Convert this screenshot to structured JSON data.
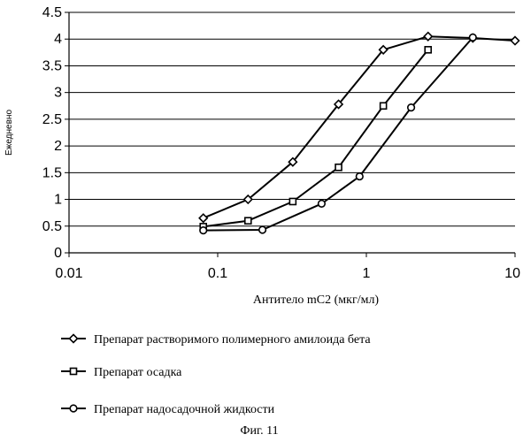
{
  "chart_data": {
    "type": "line",
    "x_scale": "log",
    "xlabel": "Антитело mC2 (мкг/мл)",
    "ylabel": "Ежедневно",
    "xlim": [
      0.01,
      10
    ],
    "ylim": [
      0,
      4.5
    ],
    "x_ticks": [
      0.01,
      0.1,
      1,
      10
    ],
    "x_tick_labels": [
      "0.01",
      "0.1",
      "1",
      "10"
    ],
    "y_ticks": [
      0,
      0.5,
      1,
      1.5,
      2,
      2.5,
      3,
      3.5,
      4,
      4.5
    ],
    "y_tick_labels": [
      "0",
      "0.5",
      "1",
      "1.5",
      "2",
      "2.5",
      "3",
      "3.5",
      "4",
      "4.5"
    ],
    "grid": "horizontal",
    "legend_position": "bottom",
    "series": [
      {
        "name": "Препарат растворимого полимерного амилоида бета",
        "marker": "diamond",
        "x": [
          0.08,
          0.16,
          0.32,
          0.65,
          1.3,
          2.6,
          5.2,
          10
        ],
        "y": [
          0.65,
          1.0,
          1.7,
          2.78,
          3.8,
          4.05,
          4.02,
          3.97
        ]
      },
      {
        "name": "Препарат осадка",
        "marker": "square",
        "x": [
          0.08,
          0.16,
          0.32,
          0.65,
          1.3,
          2.6
        ],
        "y": [
          0.49,
          0.6,
          0.96,
          1.6,
          2.75,
          3.8
        ]
      },
      {
        "name": "Препарат надосадочной жидкости",
        "marker": "circle",
        "x": [
          0.08,
          0.2,
          0.5,
          0.9,
          2.0,
          5.2
        ],
        "y": [
          0.42,
          0.43,
          0.92,
          1.43,
          2.72,
          4.03
        ]
      }
    ]
  },
  "caption": "Фиг. 11"
}
